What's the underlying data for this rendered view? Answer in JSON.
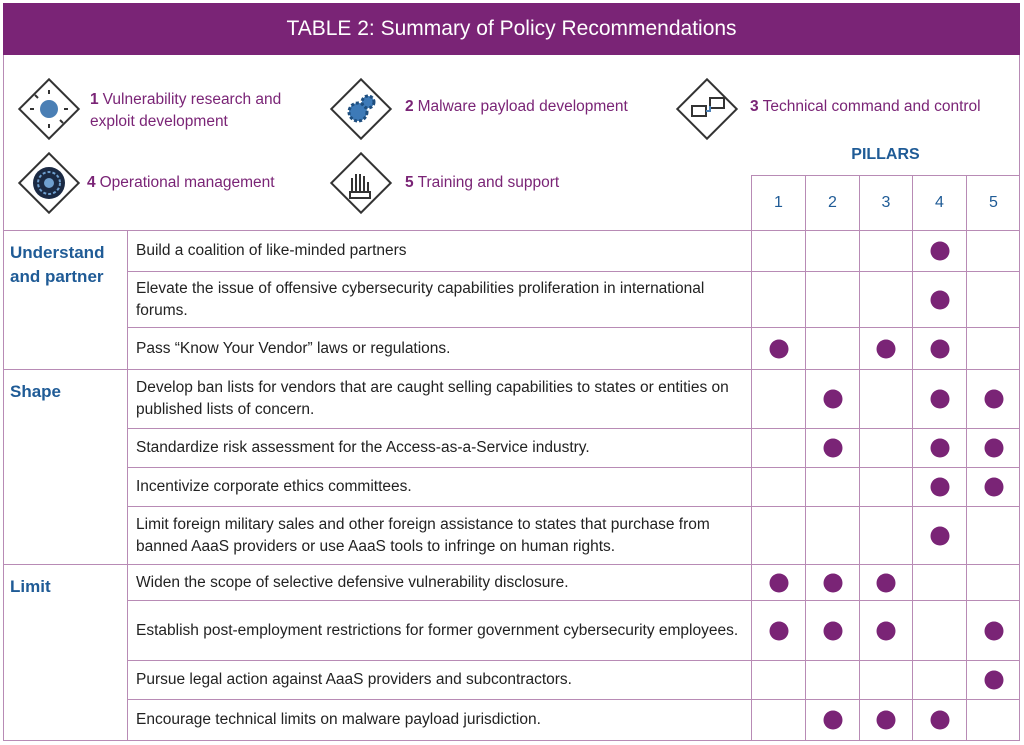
{
  "header": {
    "title": "TABLE 2: Summary of Policy Recommendations"
  },
  "legend": [
    {
      "number": "1",
      "label": "Vulnerability research and exploit development"
    },
    {
      "number": "2",
      "label": "Malware payload development"
    },
    {
      "number": "3",
      "label": "Technical command and control"
    },
    {
      "number": "4",
      "label": "Operational management"
    },
    {
      "number": "5",
      "label": "Training and support"
    }
  ],
  "table": {
    "pillars_label": "PILLARS",
    "columns": [
      "1",
      "2",
      "3",
      "4",
      "5"
    ],
    "groups": [
      {
        "category": "Understand and partner",
        "rows": [
          {
            "text": "Build a coalition of like-minded partners",
            "marks": [
              false,
              false,
              false,
              true,
              false
            ]
          },
          {
            "text": "Elevate the issue of offensive cybersecurity capabilities proliferation in international forums.",
            "marks": [
              false,
              false,
              false,
              true,
              false
            ]
          },
          {
            "text": "Pass “Know Your Vendor” laws or regulations.",
            "marks": [
              true,
              false,
              true,
              true,
              false
            ]
          }
        ]
      },
      {
        "category": "Shape",
        "rows": [
          {
            "text": "Develop ban lists for vendors that are caught selling capabilities to states or entities on published lists of concern.",
            "marks": [
              false,
              true,
              false,
              true,
              true
            ]
          },
          {
            "text": "Standardize risk assessment for the Access-as-a-Service industry.",
            "marks": [
              false,
              true,
              false,
              true,
              true
            ]
          },
          {
            "text": "Incentivize corporate ethics committees.",
            "marks": [
              false,
              false,
              false,
              true,
              true
            ]
          },
          {
            "text": "Limit foreign military sales and other foreign assistance to states that purchase from banned AaaS providers or use AaaS tools to infringe on human rights.",
            "marks": [
              false,
              false,
              false,
              true,
              false
            ]
          }
        ]
      },
      {
        "category": "Limit",
        "rows": [
          {
            "text": "Widen the scope of selective defensive vulnerability disclosure.",
            "marks": [
              true,
              true,
              true,
              false,
              false
            ]
          },
          {
            "text": "Establish post-employment restrictions for former government cybersecurity employees.",
            "marks": [
              true,
              true,
              true,
              false,
              true
            ]
          },
          {
            "text": "Pursue legal action against AaaS providers and subcontractors.",
            "marks": [
              false,
              false,
              false,
              false,
              true
            ]
          },
          {
            "text": "Encourage technical limits on malware payload jurisdiction.",
            "marks": [
              false,
              true,
              true,
              true,
              false
            ]
          }
        ]
      }
    ]
  }
}
